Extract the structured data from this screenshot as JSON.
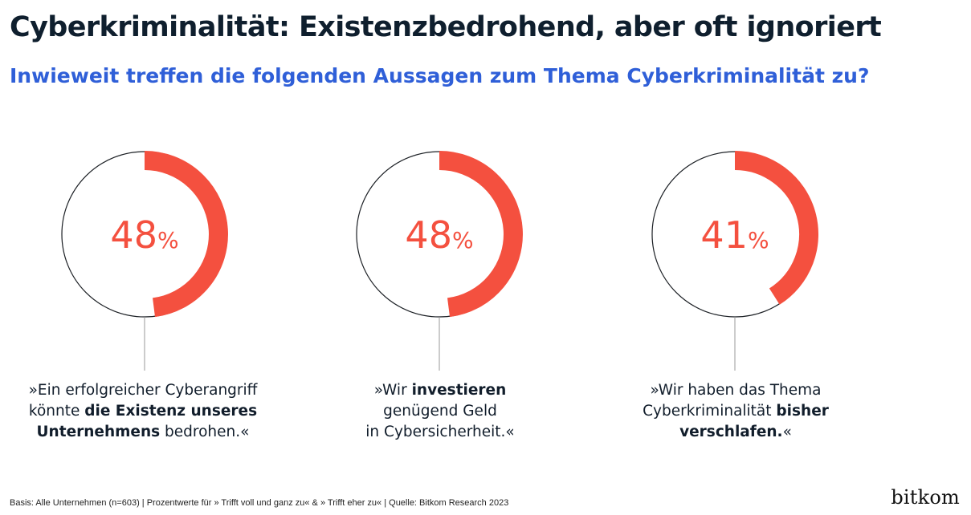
{
  "title": "Cyberkriminalität: Existenzbedrohend, aber oft ignoriert",
  "subtitle": "Inwieweit treffen die folgenden Aussagen zum Thema Cyberkriminalität zu?",
  "colors": {
    "accent": "#f4503f",
    "ring": "#1b1f24",
    "subtitle": "#2f5fd8"
  },
  "chart_data": {
    "type": "donut",
    "unit": "%",
    "items": [
      {
        "value": 48,
        "label": "48",
        "statement": [
          {
            "text": "»Ein erfolgreicher Cyberangriff",
            "bold": false
          },
          {
            "text": "\n",
            "bold": false
          },
          {
            "text": "könnte ",
            "bold": false
          },
          {
            "text": "die Existenz unseres",
            "bold": true
          },
          {
            "text": "\n",
            "bold": false
          },
          {
            "text": "Unternehmens",
            "bold": true
          },
          {
            "text": " bedrohen.«",
            "bold": false
          }
        ]
      },
      {
        "value": 48,
        "label": "48",
        "statement": [
          {
            "text": "»Wir ",
            "bold": false
          },
          {
            "text": "investieren",
            "bold": true
          },
          {
            "text": "\n",
            "bold": false
          },
          {
            "text": "genügend Geld",
            "bold": false
          },
          {
            "text": "\n",
            "bold": false
          },
          {
            "text": "in Cybersicherheit.«",
            "bold": false
          }
        ]
      },
      {
        "value": 41,
        "label": "41",
        "statement": [
          {
            "text": "»Wir haben das Thema",
            "bold": false
          },
          {
            "text": "\n",
            "bold": false
          },
          {
            "text": "Cyberkriminalität ",
            "bold": false
          },
          {
            "text": "bisher",
            "bold": true
          },
          {
            "text": "\n",
            "bold": false
          },
          {
            "text": "verschlafen.",
            "bold": true
          },
          {
            "text": "«",
            "bold": false
          }
        ]
      }
    ]
  },
  "footer": "Basis: Alle Unternehmen (n=603) | Prozentwerte für » Trifft voll und ganz zu« & » Trifft eher zu« | Quelle: Bitkom Research 2023",
  "logo_text": "bitkom"
}
